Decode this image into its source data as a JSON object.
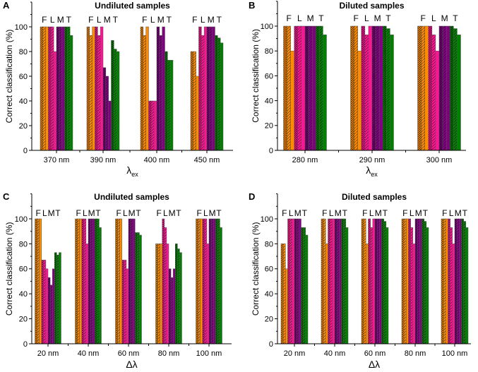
{
  "colors": {
    "F": "#ff8c00",
    "L": "#ff1493",
    "M": "#800080",
    "T": "#008000"
  },
  "chart_data": [
    {
      "panel": "A",
      "type": "bar",
      "title": "Undiluted samples",
      "xlabel_main": "λ",
      "xlabel_sub": "ex",
      "ylabel": "Correct classification (%)",
      "ylim": [
        0,
        120
      ],
      "yticks": [
        0,
        20,
        40,
        60,
        80,
        100
      ],
      "categories": [
        "370 nm",
        "390 nm",
        "400 nm",
        "450 nm"
      ],
      "series": [
        {
          "name": "F",
          "values": [
            [
              100,
              100,
              100
            ],
            [
              100,
              93,
              100
            ],
            [
              100,
              93,
              100
            ],
            [
              80,
              80,
              60
            ]
          ]
        },
        {
          "name": "L",
          "values": [
            [
              100,
              100,
              80
            ],
            [
              100,
              93,
              100
            ],
            [
              40,
              40,
              40
            ],
            [
              100,
              93,
              100
            ]
          ]
        },
        {
          "name": "M",
          "values": [
            [
              100,
              100,
              100
            ],
            [
              67,
              60,
              40
            ],
            [
              100,
              93,
              100
            ],
            [
              100,
              100,
              100
            ]
          ]
        },
        {
          "name": "T",
          "values": [
            [
              100,
              100,
              93
            ],
            [
              89,
              82,
              80
            ],
            [
              80,
              73,
              73
            ],
            [
              93,
              91,
              87
            ]
          ]
        }
      ]
    },
    {
      "panel": "B",
      "type": "bar",
      "title": "Diluted samples",
      "xlabel_main": "λ",
      "xlabel_sub": "ex",
      "ylabel": "Correct classification (%)",
      "ylim": [
        0,
        120
      ],
      "yticks": [
        0,
        20,
        40,
        60,
        80,
        100
      ],
      "categories": [
        "280 nm",
        "290 nm",
        "300 nm"
      ],
      "series": [
        {
          "name": "F",
          "values": [
            [
              100,
              100,
              80
            ],
            [
              100,
              100,
              80
            ],
            [
              100,
              100,
              100
            ]
          ]
        },
        {
          "name": "L",
          "values": [
            [
              100,
              100,
              100
            ],
            [
              100,
              93,
              100
            ],
            [
              100,
              93,
              80
            ]
          ]
        },
        {
          "name": "M",
          "values": [
            [
              100,
              100,
              100
            ],
            [
              100,
              100,
              100
            ],
            [
              100,
              100,
              100
            ]
          ]
        },
        {
          "name": "T",
          "values": [
            [
              100,
              100,
              93
            ],
            [
              100,
              98,
              93
            ],
            [
              100,
              98,
              93
            ]
          ]
        }
      ]
    },
    {
      "panel": "C",
      "type": "bar",
      "title": "Undiluted samples",
      "xlabel_main": "Δλ",
      "xlabel_sub": "",
      "ylabel": "Correct classification (%)",
      "ylim": [
        0,
        120
      ],
      "yticks": [
        0,
        20,
        40,
        60,
        80,
        100
      ],
      "categories": [
        "20 nm",
        "40 nm",
        "60 nm",
        "80 nm",
        "100 nm"
      ],
      "series": [
        {
          "name": "F",
          "values": [
            [
              100,
              100,
              100
            ],
            [
              100,
              100,
              100
            ],
            [
              100,
              100,
              100
            ],
            [
              80,
              80,
              80
            ],
            [
              100,
              100,
              100
            ]
          ]
        },
        {
          "name": "L",
          "values": [
            [
              67,
              67,
              60
            ],
            [
              100,
              100,
              80
            ],
            [
              67,
              67,
              60
            ],
            [
              100,
              93,
              80
            ],
            [
              100,
              100,
              80
            ]
          ]
        },
        {
          "name": "M",
          "values": [
            [
              53,
              47,
              60
            ],
            [
              100,
              100,
              100
            ],
            [
              100,
              100,
              100
            ],
            [
              60,
              53,
              60
            ],
            [
              100,
              100,
              100
            ]
          ]
        },
        {
          "name": "T",
          "values": [
            [
              73,
              71,
              73
            ],
            [
              100,
              100,
              93
            ],
            [
              89,
              89,
              87
            ],
            [
              80,
              76,
              73
            ],
            [
              100,
              100,
              93
            ]
          ]
        }
      ]
    },
    {
      "panel": "D",
      "type": "bar",
      "title": "Diluted samples",
      "xlabel_main": "Δλ",
      "xlabel_sub": "",
      "ylabel": "Correct classification (%)",
      "ylim": [
        0,
        120
      ],
      "yticks": [
        0,
        20,
        40,
        60,
        80,
        100
      ],
      "categories": [
        "20 nm",
        "40 nm",
        "60 nm",
        "80 nm",
        "100 nm"
      ],
      "series": [
        {
          "name": "F",
          "values": [
            [
              80,
              80,
              60
            ],
            [
              100,
              100,
              80
            ],
            [
              100,
              100,
              80
            ],
            [
              100,
              100,
              100
            ],
            [
              100,
              100,
              100
            ]
          ]
        },
        {
          "name": "L",
          "values": [
            [
              100,
              100,
              100
            ],
            [
              100,
              100,
              100
            ],
            [
              100,
              93,
              100
            ],
            [
              100,
              93,
              80
            ],
            [
              100,
              93,
              80
            ]
          ]
        },
        {
          "name": "M",
          "values": [
            [
              100,
              100,
              100
            ],
            [
              100,
              100,
              100
            ],
            [
              100,
              100,
              100
            ],
            [
              100,
              100,
              100
            ],
            [
              100,
              100,
              100
            ]
          ]
        },
        {
          "name": "T",
          "values": [
            [
              93,
              93,
              87
            ],
            [
              100,
              100,
              93
            ],
            [
              100,
              98,
              93
            ],
            [
              100,
              98,
              93
            ],
            [
              100,
              98,
              93
            ]
          ]
        }
      ]
    }
  ]
}
